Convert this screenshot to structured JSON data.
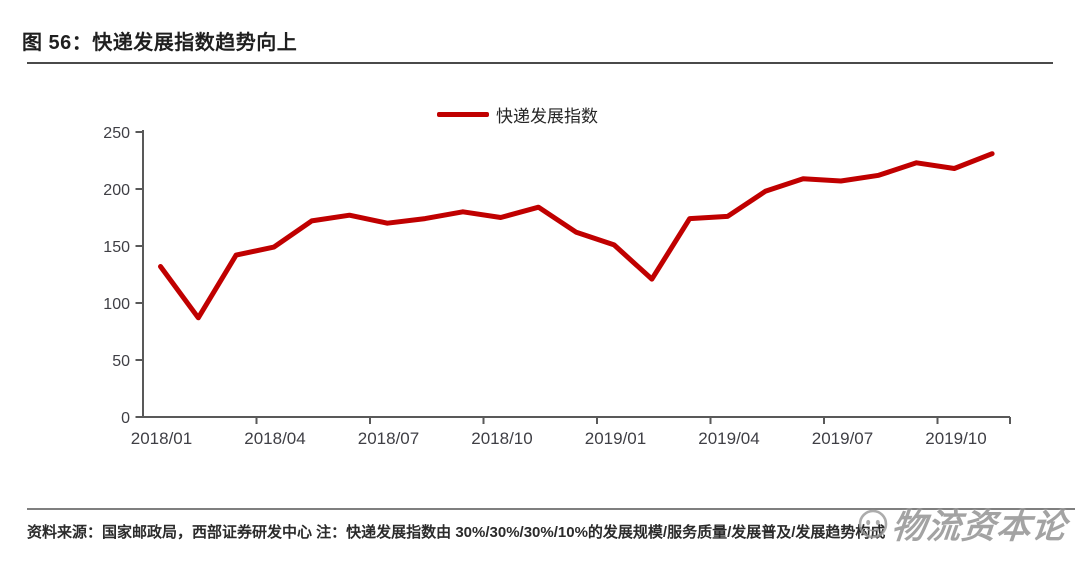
{
  "header": {
    "title": "图 56：快递发展指数趋势向上"
  },
  "legend": {
    "label": "快递发展指数"
  },
  "footer": {
    "source_note": "资料来源：国家邮政局，西部证券研发中心 注：快递发展指数由 30%/30%/30%/10%的发展规模/服务质量/发展普及/发展趋势构成",
    "watermark_text": "物流资本论"
  },
  "colors": {
    "line": "#C00000",
    "axis": "#595959",
    "tick_label": "#3F3F45"
  },
  "chart_data": {
    "type": "line",
    "title": "快递发展指数趋势向上",
    "x": [
      "2018/01",
      "2018/02",
      "2018/03",
      "2018/04",
      "2018/05",
      "2018/06",
      "2018/07",
      "2018/08",
      "2018/09",
      "2018/10",
      "2018/11",
      "2018/12",
      "2019/01",
      "2019/02",
      "2019/03",
      "2019/04",
      "2019/05",
      "2019/06",
      "2019/07",
      "2019/08",
      "2019/09",
      "2019/10",
      "2019/11"
    ],
    "series": [
      {
        "name": "快递发展指数",
        "color": "#C00000",
        "values": [
          132,
          87,
          142,
          149,
          172,
          177,
          170,
          174,
          180,
          175,
          184,
          162,
          151,
          121,
          174,
          176,
          198,
          209,
          207,
          212,
          223,
          218,
          231
        ]
      }
    ],
    "x_tick_labels": [
      "2018/01",
      "2018/04",
      "2018/07",
      "2018/10",
      "2019/01",
      "2019/04",
      "2019/07",
      "2019/10"
    ],
    "y_ticks": [
      0,
      50,
      100,
      150,
      200,
      250
    ],
    "ylim": [
      0,
      250
    ],
    "grid": false,
    "legend_position": "top-center"
  }
}
